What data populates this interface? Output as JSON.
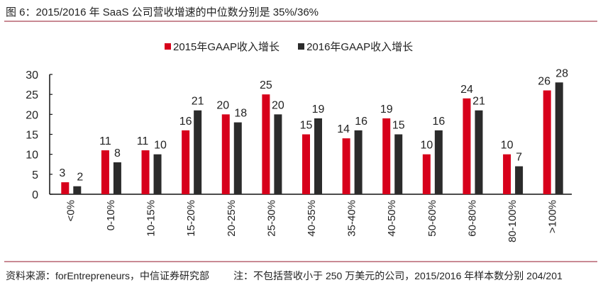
{
  "header": {
    "title": "图 6：2015/2016 年 SaaS 公司营收增速的中位数分别是 35%/36%"
  },
  "colors": {
    "series_2015": "#d7001b",
    "series_2016": "#2b2b2b",
    "rule": "#c98a94"
  },
  "chart_data": {
    "type": "bar",
    "title": "图 6：2015/2016 年 SaaS 公司营收增速的中位数分别是 35%/36%",
    "xlabel": "",
    "ylabel": "",
    "ylim": [
      0,
      30
    ],
    "yticks": [
      0,
      5,
      10,
      15,
      20,
      25,
      30
    ],
    "grid": false,
    "legend_position": "top-center",
    "categories": [
      "<0%",
      "0-10%",
      "10-15%",
      "15-20%",
      "20-25%",
      "25-30%",
      "40-35%",
      "35-40%",
      "40-50%",
      "50-60%",
      "60-80%",
      "80-100%",
      ">100%"
    ],
    "series": [
      {
        "name": "2015年GAAP收入增长",
        "values": [
          3,
          11,
          11,
          16,
          20,
          25,
          15,
          14,
          19,
          10,
          24,
          10,
          26
        ]
      },
      {
        "name": "2016年GAAP收入增长",
        "values": [
          2,
          8,
          10,
          21,
          18,
          20,
          19,
          16,
          15,
          16,
          21,
          7,
          28
        ]
      }
    ]
  },
  "footer": {
    "source": "资料来源：forEntrepreneurs，中信证券研究部",
    "note": "注：不包括营收小于 250 万美元的公司，2015/2016 年样本数分别 204/201"
  }
}
